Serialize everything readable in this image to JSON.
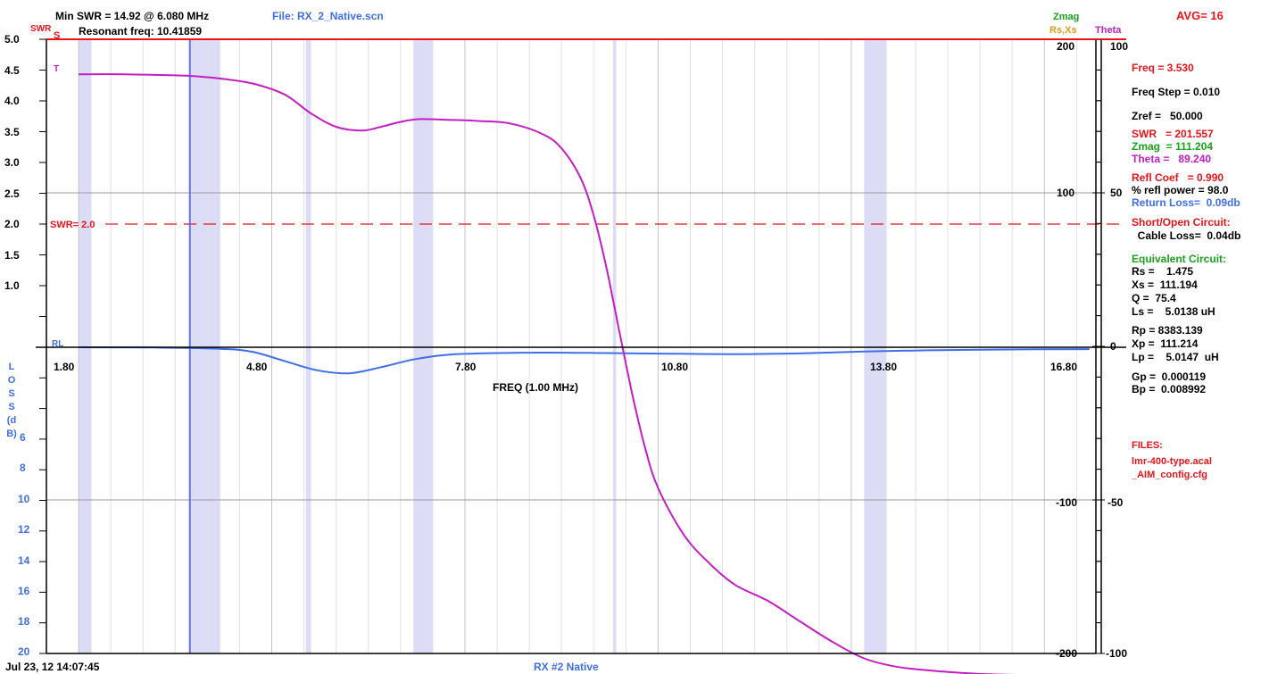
{
  "header": {
    "min_swr": "Min SWR =  14.92 @  6.080 MHz",
    "file": "File: RX_2_Native.scn",
    "resonant": "Resonant freq:  10.41859",
    "avg": "AVG=  16",
    "zmag_label": "Zmag",
    "rsxs_label": "Rs,Xs",
    "theta_label": "Theta",
    "swr_axis_label": "SWR"
  },
  "footer": {
    "timestamp": "Jul 23, 12  14:07:45",
    "title": "RX #2 Native"
  },
  "readout": {
    "freq": "Freq = 3.530",
    "freq_step": "Freq Step = 0.010",
    "zref": "Zref =   50.000",
    "swr": "SWR   = 201.557",
    "zmag": "Zmag  = 111.204",
    "theta": "Theta =   89.240",
    "refl_coef": "Refl Coef   = 0.990",
    "refl_power": "% refl power = 98.0",
    "return_loss": "Return Loss=  0.09db",
    "short_open": "Short/Open Circuit:",
    "cable_loss": "  Cable Loss=  0.04db",
    "equiv_title": "Equivalent Circuit:",
    "rs": "Rs =    1.475",
    "xs": "Xs =  111.194",
    "q": "Q =  75.4",
    "ls": "Ls =    5.0138 uH",
    "rp": "Rp = 8383.139",
    "xp": "Xp =  111.214",
    "lp": "Lp =    5.0147  uH",
    "gp": "Gp =  0.000119",
    "bp": "Bp =  0.008992",
    "files_title": "FILES:",
    "file1": "lmr-400-type.acal",
    "file2": "_AIM_config.cfg"
  },
  "chart_data": {
    "type": "line",
    "xlabel": "FREQ (1.00 MHz)",
    "xlim": [
      1.3,
      17.6
    ],
    "xticks": [
      1.8,
      4.8,
      7.8,
      10.8,
      13.8,
      16.8
    ],
    "xtick_labels": [
      "1.80",
      "4.80",
      "7.80",
      "10.80",
      "13.80",
      "16.80"
    ],
    "swr_axis": {
      "ylim": [
        1.0,
        5.0
      ],
      "tick_labels": [
        "5.0",
        "4.5",
        "4.0",
        "3.5",
        "3.0",
        "2.5",
        "2.0",
        "1.5",
        "1.0"
      ],
      "ticks": [
        5.0,
        4.5,
        4.0,
        3.5,
        3.0,
        2.5,
        2.0,
        1.5,
        1.0
      ]
    },
    "loss_axis": {
      "label": "LOSS (dB)",
      "tick_labels": [
        "6",
        "8",
        "10",
        "12",
        "14",
        "16",
        "18",
        "20"
      ],
      "ticks": [
        6,
        8,
        10,
        12,
        14,
        16,
        18,
        20
      ]
    },
    "zmag_axis": {
      "ylim": [
        -200,
        200
      ],
      "tick_labels": [
        "200",
        "100",
        "0",
        "-100",
        "-200"
      ],
      "ticks": [
        200,
        100,
        0,
        -100,
        -200
      ]
    },
    "theta_axis": {
      "ylim": [
        -100,
        100
      ],
      "tick_labels": [
        "100",
        "50",
        "0",
        "-50",
        "-100"
      ],
      "ticks": [
        100,
        50,
        0,
        -50,
        -100
      ]
    },
    "swr_ref_line": {
      "value": 2.0,
      "label": "SWR= 2.0"
    },
    "cursor_freq": 3.53,
    "bands": [
      [
        1.8,
        2.0
      ],
      [
        3.5,
        4.0
      ],
      [
        5.33,
        5.41
      ],
      [
        7.0,
        7.3
      ],
      [
        10.1,
        10.15
      ],
      [
        14.0,
        14.35
      ]
    ],
    "series": [
      {
        "name": "S",
        "color": "#e8141a",
        "axis": "swr",
        "x": [
          1.8,
          17.6
        ],
        "y": [
          5.0,
          5.0
        ]
      },
      {
        "name": "T",
        "color": "#c41dc4",
        "axis": "theta",
        "x": [
          1.8,
          2.5,
          3.0,
          3.5,
          4.0,
          4.5,
          5.0,
          5.4,
          5.8,
          6.2,
          6.5,
          6.8,
          7.1,
          7.5,
          8.0,
          8.5,
          9.0,
          9.3,
          9.6,
          9.8,
          10.0,
          10.2,
          10.4,
          10.6,
          10.8,
          11.2,
          11.6,
          12.0,
          12.5,
          13.0,
          13.5,
          14.0,
          14.5,
          15.0,
          15.5,
          16.0,
          16.5,
          17.0,
          17.5
        ],
        "y": [
          88.6,
          88.6,
          88.4,
          88.1,
          87.2,
          85.6,
          82.0,
          76.0,
          71.5,
          70.3,
          71.5,
          73.1,
          74.0,
          73.8,
          73.4,
          72.6,
          69.2,
          64.5,
          54.7,
          42.6,
          25.4,
          4.7,
          -15.6,
          -33.2,
          -46.1,
          -61.4,
          -70.7,
          -77.7,
          -82.8,
          -89.5,
          -96.1,
          -101.6,
          -104.3,
          -105.5,
          -106.3,
          -106.8,
          -107.0,
          -107.0,
          -107.4
        ]
      },
      {
        "name": "RL",
        "color": "#3f6fe8",
        "axis": "loss",
        "x": [
          1.8,
          3.0,
          4.0,
          4.5,
          5.0,
          5.5,
          6.0,
          6.5,
          7.0,
          7.5,
          8.0,
          9.0,
          10.0,
          11.0,
          12.0,
          13.0,
          14.0,
          15.0,
          16.0,
          17.5
        ],
        "y": [
          0.0,
          0.02,
          0.1,
          0.3,
          0.9,
          1.5,
          1.7,
          1.3,
          0.8,
          0.5,
          0.4,
          0.35,
          0.38,
          0.42,
          0.45,
          0.4,
          0.28,
          0.2,
          0.15,
          0.12
        ]
      }
    ]
  }
}
